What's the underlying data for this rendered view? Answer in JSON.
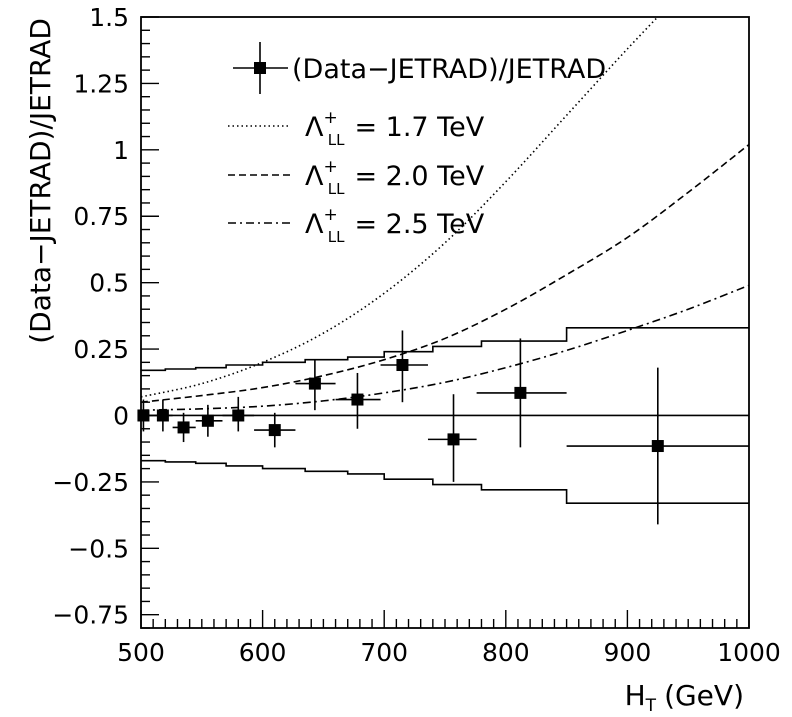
{
  "chart_data": {
    "type": "scatter",
    "xlabel": "H",
    "xlabel_sub": "T",
    "xlabel_unit": "(GeV)",
    "ylabel": "(Data−JETRAD)/JETRAD",
    "xlim": [
      500,
      1000
    ],
    "ylim": [
      -0.8,
      1.5
    ],
    "x_ticks": [
      500,
      600,
      700,
      800,
      900,
      1000
    ],
    "x_tick_labels": [
      "500",
      "600",
      "700",
      "800",
      "900",
      "1000"
    ],
    "y_ticks": [
      -0.75,
      -0.5,
      -0.25,
      0,
      0.25,
      0.5,
      0.75,
      1,
      1.25,
      1.5
    ],
    "y_tick_labels": [
      "−0.75",
      "−0.5",
      "−0.25",
      "0",
      "0.25",
      "0.5",
      "0.75",
      "1",
      "1.25",
      "1.5"
    ],
    "legend_placement": "top-right",
    "grid": false,
    "series": [
      {
        "name": "(Data−JETRAD)/JETRAD",
        "style": "points-with-errorbars",
        "marker": "filled-square",
        "points": [
          {
            "x": 502,
            "y": 0.0,
            "xlo": 500,
            "xhi": 510,
            "ylo": -0.06,
            "yhi": 0.06
          },
          {
            "x": 518,
            "y": 0.0,
            "xlo": 510,
            "xhi": 526,
            "ylo": -0.06,
            "yhi": 0.06
          },
          {
            "x": 535,
            "y": -0.045,
            "xlo": 526,
            "xhi": 545,
            "ylo": -0.1,
            "yhi": 0.01
          },
          {
            "x": 555,
            "y": -0.02,
            "xlo": 545,
            "xhi": 567,
            "ylo": -0.08,
            "yhi": 0.04
          },
          {
            "x": 580,
            "y": 0.0,
            "xlo": 567,
            "xhi": 593,
            "ylo": -0.06,
            "yhi": 0.07
          },
          {
            "x": 610,
            "y": -0.055,
            "xlo": 593,
            "xhi": 627,
            "ylo": -0.12,
            "yhi": 0.01
          },
          {
            "x": 643,
            "y": 0.12,
            "xlo": 627,
            "xhi": 660,
            "ylo": 0.02,
            "yhi": 0.21
          },
          {
            "x": 678,
            "y": 0.06,
            "xlo": 660,
            "xhi": 697,
            "ylo": -0.05,
            "yhi": 0.16
          },
          {
            "x": 715,
            "y": 0.19,
            "xlo": 697,
            "xhi": 736,
            "ylo": 0.05,
            "yhi": 0.32
          },
          {
            "x": 757,
            "y": -0.09,
            "xlo": 736,
            "xhi": 776,
            "ylo": -0.25,
            "yhi": 0.08
          },
          {
            "x": 812,
            "y": 0.085,
            "xlo": 776,
            "xhi": 850,
            "ylo": -0.12,
            "yhi": 0.29
          },
          {
            "x": 925,
            "y": -0.115,
            "xlo": 850,
            "xhi": 1000,
            "ylo": -0.41,
            "yhi": 0.18
          }
        ]
      },
      {
        "name": "Λ⁺_LL = 1.7 TeV",
        "label_main": "Λ",
        "label_sup": "+",
        "label_sub": "LL",
        "label_value": "= 1.7 TeV",
        "style": "dotted",
        "x": [
          500,
          550,
          600,
          650,
          700,
          750,
          800,
          850,
          900,
          950
        ],
        "y": [
          0.07,
          0.12,
          0.2,
          0.31,
          0.46,
          0.65,
          0.88,
          1.13,
          1.38,
          1.62
        ]
      },
      {
        "name": "Λ⁺_LL = 2.0 TeV",
        "label_main": "Λ",
        "label_sup": "+",
        "label_sub": "LL",
        "label_value": "= 2.0 TeV",
        "style": "dashed",
        "x": [
          500,
          550,
          600,
          650,
          700,
          750,
          800,
          850,
          900,
          950,
          1000
        ],
        "y": [
          0.05,
          0.075,
          0.105,
          0.15,
          0.21,
          0.29,
          0.4,
          0.53,
          0.67,
          0.84,
          1.02
        ]
      },
      {
        "name": "Λ⁺_LL = 2.5 TeV",
        "label_main": "Λ",
        "label_sup": "+",
        "label_sub": "LL",
        "label_value": "= 2.5 TeV",
        "style": "dashdot",
        "x": [
          500,
          550,
          600,
          650,
          700,
          750,
          800,
          850,
          900,
          950,
          1000
        ],
        "y": [
          0.02,
          0.025,
          0.035,
          0.055,
          0.085,
          0.125,
          0.18,
          0.245,
          0.32,
          0.4,
          0.49
        ]
      },
      {
        "name": "",
        "style": "step-upper",
        "edges": [
          500,
          520,
          545,
          570,
          600,
          635,
          670,
          700,
          740,
          780,
          850,
          1000
        ],
        "values": [
          0.17,
          0.175,
          0.18,
          0.19,
          0.2,
          0.21,
          0.22,
          0.24,
          0.26,
          0.28,
          0.33
        ]
      },
      {
        "name": "",
        "style": "step-lower",
        "edges": [
          500,
          520,
          545,
          570,
          600,
          635,
          670,
          700,
          740,
          780,
          850,
          1000
        ],
        "values": [
          -0.17,
          -0.175,
          -0.18,
          -0.19,
          -0.2,
          -0.21,
          -0.22,
          -0.24,
          -0.26,
          -0.28,
          -0.33
        ]
      }
    ],
    "reference_line": {
      "y": 0,
      "style": "solid"
    }
  }
}
